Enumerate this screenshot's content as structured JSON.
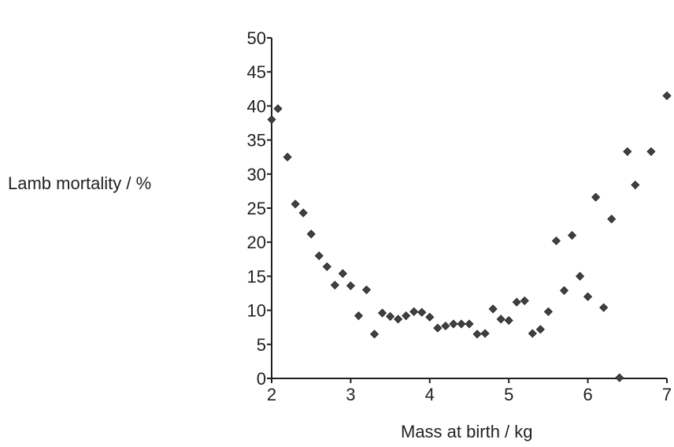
{
  "chart_data": {
    "type": "scatter",
    "title": "",
    "xlabel": "Mass at birth / kg",
    "ylabel": "Lamb mortality / %",
    "xlim": [
      2,
      7
    ],
    "ylim": [
      0,
      50
    ],
    "xticks": [
      2,
      3,
      4,
      5,
      6,
      7
    ],
    "yticks": [
      0,
      5,
      10,
      15,
      20,
      25,
      30,
      35,
      40,
      45,
      50
    ],
    "grid": false,
    "marker": "diamond",
    "marker_color": "#404040",
    "points": [
      [
        2.0,
        38.0
      ],
      [
        2.08,
        39.6
      ],
      [
        2.2,
        32.5
      ],
      [
        2.3,
        25.6
      ],
      [
        2.4,
        24.3
      ],
      [
        2.5,
        21.2
      ],
      [
        2.6,
        18.0
      ],
      [
        2.7,
        16.4
      ],
      [
        2.8,
        13.7
      ],
      [
        2.9,
        15.4
      ],
      [
        3.0,
        13.6
      ],
      [
        3.1,
        9.2
      ],
      [
        3.2,
        13.0
      ],
      [
        3.3,
        6.5
      ],
      [
        3.4,
        9.6
      ],
      [
        3.5,
        9.1
      ],
      [
        3.6,
        8.7
      ],
      [
        3.7,
        9.2
      ],
      [
        3.8,
        9.8
      ],
      [
        3.9,
        9.7
      ],
      [
        4.0,
        9.0
      ],
      [
        4.1,
        7.4
      ],
      [
        4.2,
        7.7
      ],
      [
        4.3,
        8.0
      ],
      [
        4.4,
        8.0
      ],
      [
        4.5,
        8.0
      ],
      [
        4.6,
        6.5
      ],
      [
        4.7,
        6.6
      ],
      [
        4.8,
        10.2
      ],
      [
        4.9,
        8.7
      ],
      [
        5.0,
        8.5
      ],
      [
        5.1,
        11.2
      ],
      [
        5.2,
        11.4
      ],
      [
        5.3,
        6.6
      ],
      [
        5.4,
        7.2
      ],
      [
        5.5,
        9.8
      ],
      [
        5.6,
        20.2
      ],
      [
        5.7,
        12.9
      ],
      [
        5.8,
        21.0
      ],
      [
        5.9,
        15.0
      ],
      [
        6.0,
        12.0
      ],
      [
        6.1,
        26.6
      ],
      [
        6.2,
        10.4
      ],
      [
        6.3,
        23.4
      ],
      [
        6.4,
        0.1
      ],
      [
        6.5,
        33.3
      ],
      [
        6.6,
        28.4
      ],
      [
        6.8,
        33.3
      ],
      [
        7.0,
        41.5
      ]
    ]
  }
}
